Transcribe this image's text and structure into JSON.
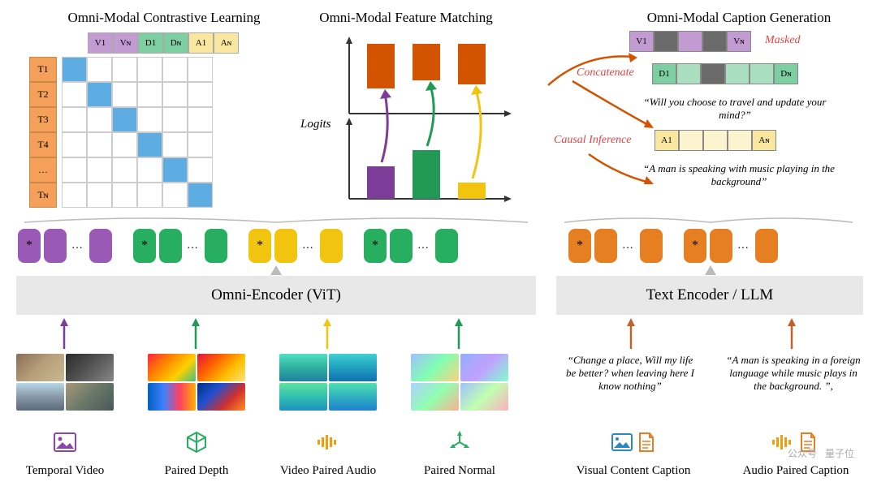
{
  "titles": {
    "contrastive": "Omni-Modal Contrastive Learning",
    "matching": "Omni-Modal Feature Matching",
    "caption": "Omni-Modal Caption Generation"
  },
  "encoders": {
    "omni": "Omni-Encoder (ViT)",
    "text": "Text Encoder / LLM"
  },
  "colors": {
    "purple": "#9b59b6",
    "purple_light": "#c39bd3",
    "green": "#27ae60",
    "green_light": "#7dcea0",
    "yellow": "#f1c40f",
    "yellow_light": "#f9e79f",
    "orange": "#e67e22",
    "orange_light": "#f5b041",
    "blue": "#5dade2",
    "blue_light": "#aed6f1",
    "red_orange": "#d35400",
    "grid_border": "#cccccc",
    "mask_gray": "#6b6b6b",
    "t_orange": "#f5a05a",
    "encoder_bg": "#e8e8e8"
  },
  "matrix": {
    "col_headers": [
      "V1",
      "Vɴ",
      "D1",
      "Dɴ",
      "A1",
      "Aɴ"
    ],
    "col_colors": [
      "#c39bd3",
      "#c39bd3",
      "#7dcea0",
      "#7dcea0",
      "#f9e79f",
      "#f9e79f"
    ],
    "row_headers": [
      "T1",
      "T2",
      "T3",
      "T4",
      "…",
      "Tɴ"
    ],
    "size": 6,
    "diag_color": "#5dade2"
  },
  "feature_matching": {
    "logits_label": "Logits",
    "top_bars": {
      "values": [
        55,
        45,
        50
      ],
      "color": "#d35400",
      "width": 28
    },
    "bottom_bars": {
      "values": [
        40,
        60,
        20
      ],
      "colors": [
        "#7d3c98",
        "#229954",
        "#f1c40f"
      ]
    }
  },
  "caption_block": {
    "annotations": {
      "masked": "Masked",
      "concat": "Concatenate",
      "causal": "Causal Inference"
    },
    "v_strip": {
      "labels": [
        "V1",
        "",
        "",
        "",
        "Vɴ"
      ],
      "colors": [
        "#c39bd3",
        "#6b6b6b",
        "#c39bd3",
        "#6b6b6b",
        "#c39bd3"
      ]
    },
    "d_strip": {
      "labels": [
        "D1",
        "",
        "",
        "",
        "",
        "Dɴ"
      ],
      "colors": [
        "#7dcea0",
        "#a9dfbf",
        "#6b6b6b",
        "#a9dfbf",
        "#a9dfbf",
        "#7dcea0"
      ]
    },
    "a_strip": {
      "labels": [
        "A1",
        "",
        "",
        "",
        "Aɴ"
      ],
      "colors": [
        "#f9e79f",
        "#fcf3cf",
        "#fcf3cf",
        "#fcf3cf",
        "#f9e79f"
      ]
    },
    "caption1": "“Will you choose to travel and update your mind?”",
    "caption2": "“A  man is speaking with music playing in the background”"
  },
  "token_rows": {
    "left": [
      {
        "color": "#9b59b6",
        "items": [
          "*",
          "",
          "…",
          ""
        ]
      },
      {
        "color": "#27ae60",
        "items": [
          "*",
          "",
          "…",
          ""
        ]
      },
      {
        "color": "#f1c40f",
        "items": [
          "*",
          "",
          "…",
          ""
        ]
      },
      {
        "color": "#27ae60",
        "items": [
          "*",
          "",
          "…",
          ""
        ]
      }
    ],
    "right": [
      {
        "color": "#e67e22",
        "items": [
          "*",
          "",
          "…",
          ""
        ]
      },
      {
        "color": "#e67e22",
        "items": [
          "*",
          "",
          "…",
          ""
        ]
      }
    ]
  },
  "bottom": {
    "labels": [
      "Temporal Video",
      "Paired Depth",
      "Video Paired Audio",
      "Paired Normal",
      "Visual Content Caption",
      "Audio Paired Caption"
    ],
    "caption1": "“Change a place, Will my life be better? when leaving here I know nothing”",
    "caption2": "“A man is speaking in a foreign language while music plays in the background. ”,",
    "icon_colors": [
      "#8e44ad",
      "#27ae60",
      "#f39c12",
      "#27ae60",
      "#2e86c1",
      "#e67e22"
    ],
    "video_gradients": [
      "linear-gradient(135deg,#8a6d5a,#b8a07a,#c8b890)",
      "linear-gradient(135deg,#2a2a2a,#555,#888)",
      "linear-gradient(180deg,#b8d8e8,#8898a8,#5a6a7a)",
      "linear-gradient(135deg,#a89878,#687868,#485858)"
    ],
    "depth_gradients": [
      "linear-gradient(135deg,#ff2040,#ff8000,#ffd000,#40c080)",
      "linear-gradient(135deg,#e01040,#ff6000,#ffc000,#ffe080)",
      "linear-gradient(90deg,#0060c0,#4080ff,#ff4060,#ffb000)",
      "linear-gradient(135deg,#003080,#2050d0,#d03030,#ff9020)"
    ],
    "audio_gradients": [
      "linear-gradient(180deg,#50e0c0,#30b0a0,#2080a0)",
      "linear-gradient(180deg,#40d0d0,#20a0c0,#1070b0)",
      "linear-gradient(180deg,#60e0a0,#30c0b0,#2090c0)",
      "linear-gradient(180deg,#50e0b0,#30b0c0,#2080d0)"
    ],
    "normal_gradients": [
      "linear-gradient(135deg,#a0c0ff,#80ffb0,#ffd080)",
      "linear-gradient(135deg,#90b0ff,#c0a0ff,#80ffd0)",
      "linear-gradient(135deg,#b0d0ff,#90ffb0,#ffb090)",
      "linear-gradient(135deg,#a0c0ff,#c0ffb0,#ffb0c0)"
    ]
  }
}
